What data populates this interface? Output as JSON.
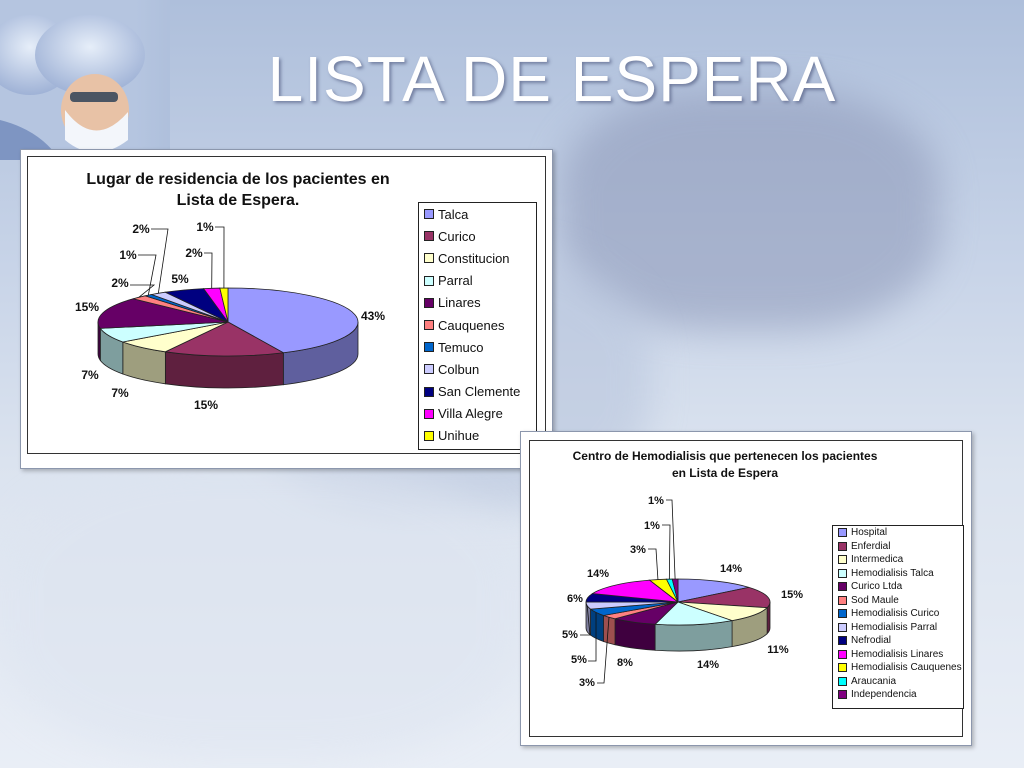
{
  "slide": {
    "title": "LISTA DE ESPERA"
  },
  "chart_data": [
    {
      "type": "pie",
      "title": "Lugar de residencia de los pacientes en Lista de Espera.",
      "categories": [
        "Talca",
        "Curico",
        "Constitucion",
        "Parral",
        "Linares",
        "Cauquenes",
        "Temuco",
        "Colbun",
        "San Clemente",
        "Villa Alegre",
        "Unihue"
      ],
      "values": [
        43,
        15,
        7,
        7,
        15,
        2,
        1,
        2,
        5,
        2,
        1
      ],
      "value_labels": [
        "43%",
        "15%",
        "7%",
        "7%",
        "15%",
        "2%",
        "1%",
        "2%",
        "5%",
        "2%",
        "1%"
      ],
      "colors": [
        "#9999ff",
        "#993366",
        "#ffffcc",
        "#ccffff",
        "#660066",
        "#ff8080",
        "#0066cc",
        "#ccccff",
        "#000080",
        "#ff00ff",
        "#ffff00"
      ],
      "legend_position": "right"
    },
    {
      "type": "pie",
      "title": "Centro de Hemodialisis que pertenecen los pacientes en Lista de Espera",
      "categories": [
        "Hospital",
        "Enferdial",
        "Intermedica",
        "Hemodialisis Talca",
        "Curico Ltda",
        "Sod Maule",
        "Hemodialisis Curico",
        "Hemodialisis Parral",
        "Nefrodial",
        "Hemodialisis Linares",
        "Hemodialisis Cauquenes",
        "Araucania",
        "Independencia"
      ],
      "values": [
        14,
        15,
        11,
        14,
        8,
        3,
        5,
        5,
        6,
        14,
        3,
        1,
        1
      ],
      "value_labels": [
        "14%",
        "15%",
        "11%",
        "14%",
        "8%",
        "3%",
        "5%",
        "5%",
        "6%",
        "14%",
        "3%",
        "1%",
        "1%"
      ],
      "colors": [
        "#9999ff",
        "#993366",
        "#ffffcc",
        "#ccffff",
        "#660066",
        "#ff8080",
        "#0066cc",
        "#ccccff",
        "#000080",
        "#ff00ff",
        "#ffff00",
        "#00ffff",
        "#800080"
      ],
      "legend_position": "right"
    }
  ]
}
